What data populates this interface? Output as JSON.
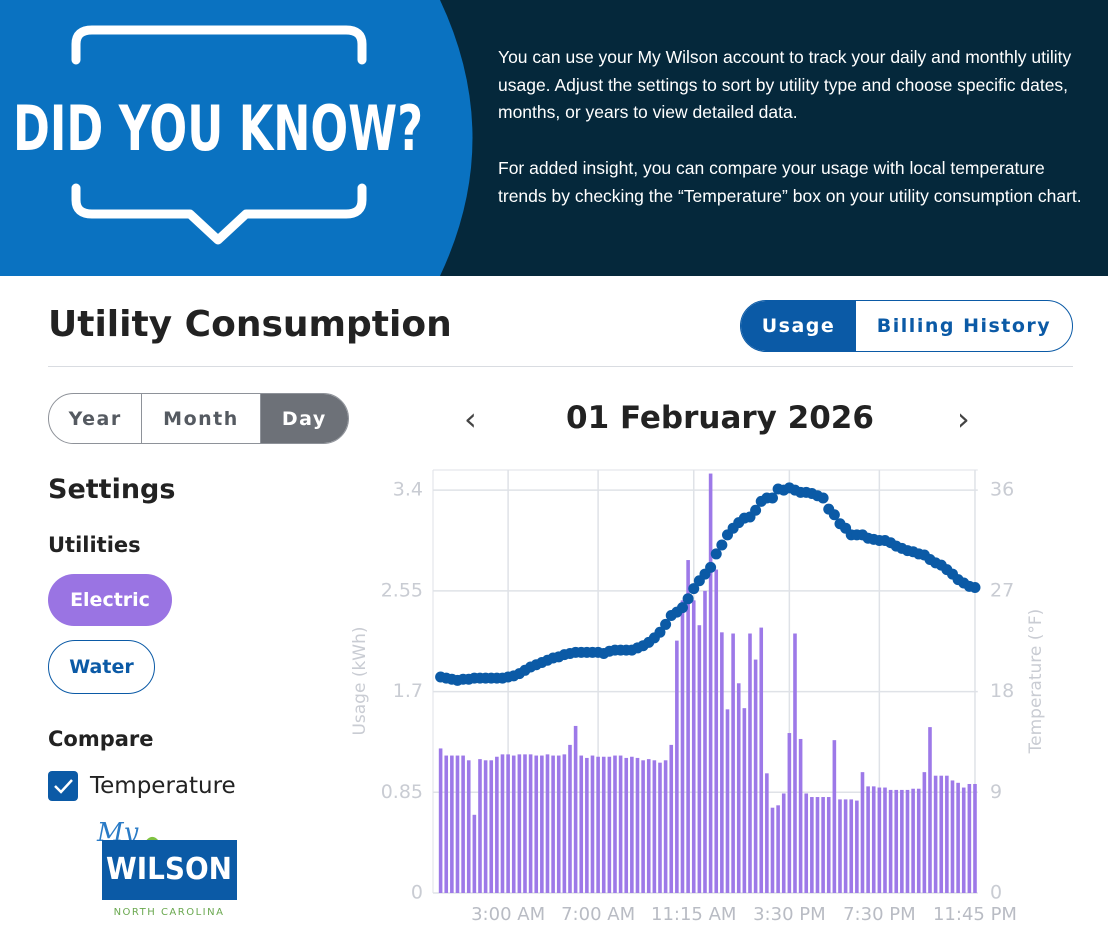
{
  "banner": {
    "heading": "DID YOU KNOW?",
    "paragraphs": [
      "You can use your My Wilson account to track your daily and monthly utility usage. Adjust the settings to sort by utility type and choose specific dates, months, or years to view detailed data.",
      "For added insight, you can compare your usage with local temperature trends by checking the “Temperature” box on your utility consumption chart."
    ]
  },
  "header": {
    "title": "Utility Consumption",
    "tabs": [
      "Usage",
      "Billing History"
    ]
  },
  "period_tabs": [
    "Year",
    "Month",
    "Day"
  ],
  "date": "01 February 2026",
  "settings": {
    "title": "Settings",
    "utilities_label": "Utilities",
    "utilities": [
      "Electric",
      "Water"
    ],
    "compare_label": "Compare",
    "compare_option": "Temperature"
  },
  "logo": {
    "script": "My",
    "name": "WILSON",
    "region": "NORTH CAROLINA"
  },
  "chart_data": {
    "type": "bar",
    "y_label": "Usage (kWh)",
    "y2_label": "Temperature (°F)",
    "categories": [
      null,
      null,
      null,
      null,
      null,
      null,
      null,
      null,
      null,
      null,
      null,
      null,
      "3:00 AM",
      null,
      null,
      null,
      null,
      null,
      null,
      null,
      null,
      null,
      null,
      null,
      null,
      null,
      null,
      null,
      "7:00 AM",
      null,
      null,
      null,
      null,
      null,
      null,
      null,
      null,
      null,
      null,
      null,
      null,
      null,
      null,
      null,
      null,
      "11:15 AM",
      null,
      null,
      null,
      null,
      null,
      null,
      null,
      null,
      null,
      null,
      null,
      null,
      null,
      null,
      null,
      null,
      "3:30 PM",
      null,
      null,
      null,
      null,
      null,
      null,
      null,
      null,
      null,
      null,
      null,
      null,
      null,
      null,
      null,
      "7:30 PM",
      null,
      null,
      null,
      null,
      null,
      null,
      null,
      null,
      null,
      null,
      null,
      null,
      null,
      null,
      null,
      null,
      "11:45 PM"
    ],
    "series": [
      {
        "type": "bar",
        "color": "#9d79e8",
        "values": [
          1.22,
          1.16,
          1.16,
          1.16,
          1.16,
          1.12,
          0.66,
          1.13,
          1.12,
          1.12,
          1.15,
          1.17,
          1.17,
          1.16,
          1.17,
          1.17,
          1.17,
          1.16,
          1.16,
          1.17,
          1.16,
          1.16,
          1.17,
          1.25,
          1.41,
          1.16,
          1.14,
          1.16,
          1.15,
          1.15,
          1.15,
          1.16,
          1.16,
          1.14,
          1.15,
          1.14,
          1.12,
          1.13,
          1.12,
          1.1,
          1.12,
          1.25,
          2.13,
          2.47,
          2.81,
          2.47,
          2.26,
          2.55,
          3.54,
          2.73,
          2.2,
          1.55,
          2.19,
          1.77,
          1.56,
          2.19,
          1.97,
          2.24,
          1.01,
          0.72,
          0.74,
          0.84,
          1.35,
          2.19,
          1.3,
          0.84,
          0.81,
          0.81,
          0.81,
          0.81,
          1.29,
          0.79,
          0.79,
          0.79,
          0.78,
          1.02,
          0.9,
          0.9,
          0.89,
          0.89,
          0.87,
          0.87,
          0.87,
          0.87,
          0.88,
          0.88,
          1.02,
          1.4,
          0.99,
          0.99,
          0.99,
          0.95,
          0.93,
          0.89,
          0.92,
          0.92
        ]
      },
      {
        "type": "line",
        "color": "#0b5aa6",
        "axis": "y2",
        "values": [
          19.3,
          19.2,
          19.1,
          19.0,
          19.1,
          19.1,
          19.2,
          19.2,
          19.2,
          19.2,
          19.2,
          19.2,
          19.3,
          19.4,
          19.6,
          19.9,
          20.2,
          20.4,
          20.6,
          20.8,
          21.0,
          21.1,
          21.3,
          21.4,
          21.5,
          21.5,
          21.5,
          21.5,
          21.5,
          21.4,
          21.6,
          21.7,
          21.7,
          21.7,
          21.7,
          21.9,
          22.1,
          22.4,
          22.8,
          23.3,
          24.0,
          24.8,
          25.1,
          25.5,
          26.3,
          27.2,
          27.9,
          28.5,
          29.1,
          30.3,
          31.1,
          32.0,
          32.6,
          33.1,
          33.5,
          33.6,
          34.2,
          35.0,
          35.3,
          35.3,
          36.1,
          36.0,
          36.2,
          36.0,
          35.8,
          35.8,
          35.7,
          35.5,
          35.3,
          34.3,
          33.8,
          33.0,
          32.6,
          32.0,
          32.0,
          32.0,
          31.7,
          31.6,
          31.5,
          31.5,
          31.3,
          31.0,
          30.8,
          30.6,
          30.5,
          30.3,
          30.2,
          29.8,
          29.5,
          29.3,
          28.9,
          28.5,
          28.0,
          27.7,
          27.4,
          27.3
        ]
      }
    ],
    "ylim": [
      0,
      3.57
    ],
    "yticks": [
      0,
      0.85,
      1.7,
      2.55,
      3.4
    ],
    "y2lim": [
      0,
      37.8
    ],
    "y2ticks": [
      0,
      9,
      18,
      27,
      36
    ],
    "grid": true
  }
}
